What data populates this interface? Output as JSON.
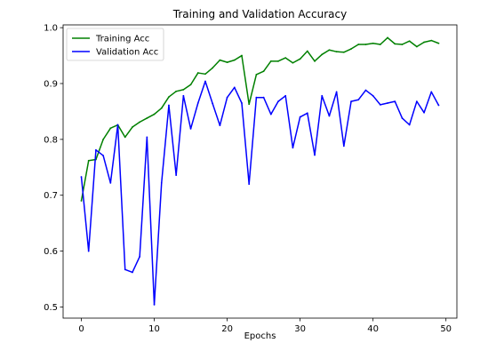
{
  "chart_data": {
    "type": "line",
    "title": "Training and Validation Accuracy",
    "xlabel": "Epochs",
    "ylabel": "",
    "xlim": [
      -2.5,
      51.5
    ],
    "ylim": [
      0.48,
      1.005
    ],
    "xticks": [
      0,
      10,
      20,
      30,
      40,
      50
    ],
    "yticks": [
      0.5,
      0.6,
      0.7,
      0.8,
      0.9,
      1.0
    ],
    "legend_position": "top-left",
    "grid": false,
    "x": [
      0,
      1,
      2,
      3,
      4,
      5,
      6,
      7,
      8,
      9,
      10,
      11,
      12,
      13,
      14,
      15,
      16,
      17,
      18,
      19,
      20,
      21,
      22,
      23,
      24,
      25,
      26,
      27,
      28,
      29,
      30,
      31,
      32,
      33,
      34,
      35,
      36,
      37,
      38,
      39,
      40,
      41,
      42,
      43,
      44,
      45,
      46,
      47,
      48,
      49
    ],
    "series": [
      {
        "name": "Training Acc",
        "color": "#008000",
        "values": [
          0.69,
          0.762,
          0.764,
          0.8,
          0.82,
          0.826,
          0.804,
          0.822,
          0.831,
          0.838,
          0.845,
          0.856,
          0.876,
          0.886,
          0.889,
          0.898,
          0.919,
          0.917,
          0.928,
          0.942,
          0.938,
          0.942,
          0.95,
          0.863,
          0.916,
          0.922,
          0.94,
          0.94,
          0.946,
          0.937,
          0.944,
          0.958,
          0.94,
          0.952,
          0.96,
          0.957,
          0.956,
          0.962,
          0.97,
          0.97,
          0.972,
          0.97,
          0.982,
          0.971,
          0.97,
          0.976,
          0.966,
          0.974,
          0.977,
          0.972
        ]
      },
      {
        "name": "Validation Acc",
        "color": "#0000ff",
        "values": [
          0.733,
          0.6,
          0.781,
          0.771,
          0.722,
          0.826,
          0.567,
          0.562,
          0.59,
          0.804,
          0.504,
          0.722,
          0.861,
          0.736,
          0.878,
          0.819,
          0.865,
          0.904,
          0.864,
          0.825,
          0.875,
          0.893,
          0.865,
          0.72,
          0.875,
          0.875,
          0.845,
          0.868,
          0.878,
          0.785,
          0.84,
          0.847,
          0.772,
          0.878,
          0.842,
          0.885,
          0.788,
          0.868,
          0.871,
          0.888,
          0.878,
          0.862,
          0.865,
          0.868,
          0.838,
          0.826,
          0.868,
          0.848,
          0.885,
          0.861
        ]
      }
    ]
  }
}
